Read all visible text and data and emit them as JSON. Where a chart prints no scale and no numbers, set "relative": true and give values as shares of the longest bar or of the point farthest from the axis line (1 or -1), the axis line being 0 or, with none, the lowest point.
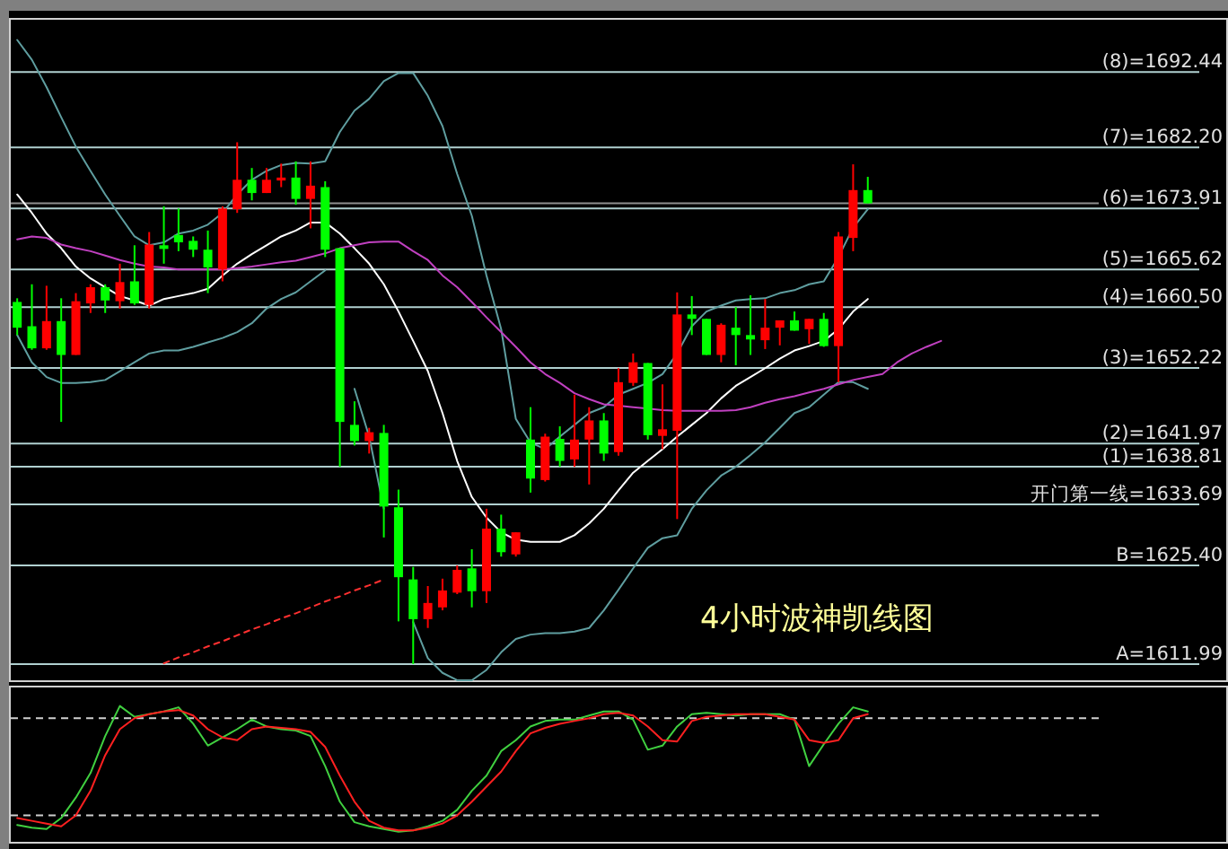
{
  "chart_data": [
    {
      "type": "candlestick",
      "title": "4小时波神凯线图",
      "categories": [
        null,
        null,
        null,
        null,
        null,
        null,
        null,
        null,
        null,
        null,
        null,
        null,
        null,
        null,
        null,
        null,
        null,
        null,
        null,
        null,
        null,
        null,
        null,
        null,
        null,
        null,
        null,
        null,
        null,
        null,
        null,
        null,
        null,
        null,
        null,
        null,
        null,
        null,
        null,
        null,
        null,
        null,
        null,
        null,
        null,
        null,
        null,
        null,
        null,
        null,
        null,
        null,
        null,
        null,
        null,
        null,
        null,
        null,
        null,
        null,
        null,
        null,
        null,
        null,
        null,
        null,
        null,
        null,
        null,
        null,
        null,
        null,
        null,
        null,
        null,
        null,
        null,
        null,
        null,
        null,
        null,
        null,
        null
      ],
      "ohlc": [
        [
          1661.2,
          1661.7,
          1656.7,
          1657.7
        ],
        [
          1657.9,
          1663.6,
          1654.7,
          1654.9
        ],
        [
          1654.9,
          1663.4,
          1654.7,
          1658.6
        ],
        [
          1658.6,
          1661.7,
          1644.9,
          1654.0
        ],
        [
          1654.0,
          1662.4,
          1654.0,
          1661.3
        ],
        [
          1661.0,
          1663.6,
          1659.7,
          1663.2
        ],
        [
          1663.2,
          1663.6,
          1659.7,
          1661.4
        ],
        [
          1661.3,
          1666.4,
          1660.3,
          1663.9
        ],
        [
          1664.0,
          1668.9,
          1660.8,
          1661.0
        ],
        [
          1660.8,
          1670.7,
          1660.3,
          1669.0
        ],
        [
          1668.9,
          1674.2,
          1666.4,
          1668.4
        ],
        [
          1670.3,
          1673.9,
          1668.1,
          1669.3
        ],
        [
          1669.5,
          1670.1,
          1667.3,
          1668.3
        ],
        [
          1668.3,
          1670.9,
          1662.4,
          1665.9
        ],
        [
          1665.6,
          1674.2,
          1664.0,
          1673.9
        ],
        [
          1673.8,
          1682.9,
          1673.3,
          1677.8
        ],
        [
          1677.8,
          1679.4,
          1675.0,
          1676.0
        ],
        [
          1676.0,
          1679.4,
          1676.0,
          1677.8
        ],
        [
          1677.7,
          1680.0,
          1676.8,
          1678.1
        ],
        [
          1678.1,
          1680.3,
          1674.4,
          1675.2
        ],
        [
          1675.2,
          1680.3,
          1671.2,
          1677.0
        ],
        [
          1676.8,
          1677.6,
          1667.3,
          1668.3
        ],
        [
          1668.5,
          1668.5,
          1638.8,
          1644.9
        ],
        [
          1644.5,
          1647.7,
          1641.7,
          1642.3
        ],
        [
          1642.3,
          1644.1,
          1640.6,
          1643.5
        ],
        [
          1643.4,
          1644.5,
          1629.2,
          1633.4
        ],
        [
          1633.3,
          1635.7,
          1617.8,
          1623.8
        ],
        [
          1623.5,
          1625.2,
          1612.0,
          1618.1
        ],
        [
          1618.1,
          1622.6,
          1616.9,
          1620.3
        ],
        [
          1619.7,
          1623.6,
          1619.3,
          1622.0
        ],
        [
          1621.7,
          1625.4,
          1621.5,
          1624.8
        ],
        [
          1625.0,
          1627.6,
          1619.7,
          1621.9
        ],
        [
          1621.9,
          1633.1,
          1620.3,
          1630.4
        ],
        [
          1630.4,
          1632.3,
          1626.6,
          1627.2
        ],
        [
          1626.9,
          1629.9,
          1626.6,
          1629.9
        ],
        [
          1642.5,
          1646.9,
          1635.3,
          1637.2
        ],
        [
          1637.0,
          1643.3,
          1636.8,
          1642.9
        ],
        [
          1642.6,
          1644.3,
          1638.8,
          1639.6
        ],
        [
          1639.8,
          1648.6,
          1638.8,
          1642.5
        ],
        [
          1642.5,
          1646.9,
          1636.4,
          1645.1
        ],
        [
          1645.1,
          1646.1,
          1639.6,
          1640.6
        ],
        [
          1640.8,
          1652.2,
          1640.3,
          1650.3
        ],
        [
          1650.2,
          1654.2,
          1649.8,
          1653.0
        ],
        [
          1652.9,
          1652.9,
          1642.5,
          1643.1
        ],
        [
          1643.0,
          1650.0,
          1641.2,
          1643.9
        ],
        [
          1643.7,
          1662.5,
          1631.7,
          1659.5
        ],
        [
          1659.5,
          1662.0,
          1656.7,
          1658.9
        ],
        [
          1658.9,
          1658.9,
          1654.0,
          1654.0
        ],
        [
          1654.0,
          1658.3,
          1653.0,
          1658.1
        ],
        [
          1657.7,
          1660.5,
          1652.6,
          1656.7
        ],
        [
          1656.7,
          1662.1,
          1654.0,
          1656.1
        ],
        [
          1656.0,
          1661.6,
          1654.8,
          1657.7
        ],
        [
          1657.7,
          1658.7,
          1655.3,
          1658.7
        ],
        [
          1658.7,
          1659.9,
          1657.3,
          1657.3
        ],
        [
          1657.5,
          1658.9,
          1655.5,
          1658.9
        ],
        [
          1658.9,
          1659.7,
          1655.1,
          1655.2
        ],
        [
          1655.2,
          1670.7,
          1650.3,
          1670.1
        ],
        [
          1669.9,
          1679.9,
          1668.1,
          1676.4
        ],
        [
          1676.4,
          1678.2,
          1674.6,
          1674.6
        ],
        null,
        null,
        null,
        null,
        null,
        null,
        null,
        null,
        null,
        null,
        null,
        null,
        null,
        null,
        null,
        null,
        null,
        null,
        null,
        null,
        null,
        null,
        null,
        null
      ],
      "colors": [
        "#00ff00",
        "#00ff00",
        "#ff0000",
        "#00ff00",
        "#ff0000",
        "#ff0000",
        "#00ff00",
        "#ff0000",
        "#00ff00",
        "#ff0000",
        "#00ff00",
        "#00ff00",
        "#00ff00",
        "#00ff00",
        "#ff0000",
        "#ff0000",
        "#00ff00",
        "#ff0000",
        "#ff0000",
        "#00ff00",
        "#ff0000",
        "#00ff00",
        "#00ff00",
        "#00ff00",
        "#ff0000",
        "#00ff00",
        "#00ff00",
        "#00ff00",
        "#ff0000",
        "#ff0000",
        "#ff0000",
        "#00ff00",
        "#ff0000",
        "#00ff00",
        "#ff0000",
        "#00ff00",
        "#ff0000",
        "#00ff00",
        "#ff0000",
        "#ff0000",
        "#00ff00",
        "#ff0000",
        "#ff0000",
        "#00ff00",
        "#ff0000",
        "#ff0000",
        "#00ff00",
        "#00ff00",
        "#ff0000",
        "#00ff00",
        "#00ff00",
        "#ff0000",
        "#ff0000",
        "#00ff00",
        "#ff0000",
        "#00ff00",
        "#ff0000",
        "#ff0000",
        "#00ff00",
        null,
        null,
        null,
        null,
        null,
        null,
        null,
        null,
        null,
        null,
        null,
        null,
        null,
        null,
        null,
        null,
        null,
        null,
        null,
        null,
        null,
        null,
        null,
        null
      ],
      "series": [
        {
          "type": "line",
          "color": "#5f9ea0",
          "values": [
            1696.8,
            1694.1,
            1690.4,
            1686.3,
            1682.3,
            1679.0,
            1675.8,
            1672.9,
            1670.1,
            1668.9,
            1669.3,
            1670.5,
            1670.9,
            1671.7,
            1673.3,
            1675.8,
            1677.8,
            1679.0,
            1679.8,
            1680.1,
            1680.0,
            1680.3,
            1684.3,
            1687.2,
            1688.8,
            1691.2,
            1692.3,
            1692.3,
            1689.2,
            1685.1,
            1678.6,
            1672.9,
            1664.8,
            1657.5,
            1645.3,
            1642.1,
            1641.2,
            1642.9,
            1644.5,
            1646.1,
            1646.9,
            1648.6,
            1649.4,
            1650.2,
            1651.4,
            1654.2,
            1657.9,
            1659.9,
            1660.7,
            1661.4,
            1661.6,
            1661.7,
            1662.4,
            1662.8,
            1663.6,
            1664.0,
            1667.3,
            1671.3,
            1673.8,
            null,
            null,
            null,
            null,
            null,
            null,
            null,
            null,
            null,
            null,
            null,
            null,
            null,
            null,
            null,
            null,
            null,
            null,
            null,
            null,
            null,
            null,
            null,
            null
          ]
        },
        {
          "type": "line",
          "color": "#5f9ea0",
          "values": [
            1656.7,
            1653.0,
            1651.0,
            1650.2,
            1650.2,
            1650.3,
            1650.6,
            1651.8,
            1653.0,
            1654.2,
            1654.6,
            1654.6,
            1655.1,
            1655.7,
            1656.3,
            1657.1,
            1658.3,
            1660.3,
            1661.6,
            1662.5,
            1664.0,
            1665.5,
            null,
            1649.4,
            1642.9,
            1633.1,
            null,
            1617.7,
            1612.8,
            1610.8,
            1609.8,
            1609.8,
            1611.2,
            1613.6,
            1615.4,
            1616.0,
            1616.2,
            1616.2,
            1616.4,
            1616.9,
            1619.3,
            1622.1,
            1625.0,
            1627.8,
            1629.1,
            1629.5,
            1633.1,
            1635.6,
            1637.6,
            1638.8,
            1640.4,
            1642.1,
            1644.1,
            1646.1,
            1646.9,
            1648.6,
            1650.3,
            1650.3,
            1649.4,
            null,
            null,
            null,
            null,
            null,
            null,
            null,
            null,
            null,
            null,
            null,
            null,
            null,
            null,
            null,
            null,
            null,
            null,
            null,
            null,
            null,
            null,
            null,
            null
          ]
        },
        {
          "type": "line",
          "color": "#ffffff",
          "values": [
            1675.8,
            1673.3,
            1670.5,
            1668.5,
            1666.0,
            1664.4,
            1663.2,
            1662.0,
            1661.4,
            1660.7,
            1661.6,
            1662.0,
            1662.4,
            1663.0,
            1664.8,
            1666.4,
            1667.7,
            1668.9,
            1670.1,
            1670.9,
            1672.0,
            1672.0,
            1670.5,
            1668.5,
            1666.4,
            1663.6,
            1659.9,
            1655.9,
            1651.8,
            1646.1,
            1639.6,
            1634.7,
            1631.9,
            1629.9,
            1628.9,
            1628.6,
            1628.6,
            1628.6,
            1629.5,
            1631.1,
            1633.1,
            1635.6,
            1638.0,
            1639.6,
            1641.2,
            1642.9,
            1644.5,
            1646.1,
            1648.1,
            1649.8,
            1651.0,
            1652.2,
            1653.5,
            1654.6,
            1655.2,
            1655.9,
            1657.5,
            1659.9,
            1661.6,
            null,
            null,
            null,
            null,
            null,
            null,
            null,
            null,
            null,
            null,
            null,
            null,
            null,
            null,
            null,
            null,
            null,
            null,
            null,
            null,
            null,
            null,
            null,
            null
          ]
        },
        {
          "type": "line",
          "color": "#c040c0",
          "values": [
            1669.7,
            1670.1,
            1669.9,
            1669.0,
            1668.5,
            1668.1,
            1667.5,
            1666.9,
            1666.4,
            1666.0,
            1665.9,
            1665.6,
            1665.6,
            1665.6,
            1665.6,
            1665.8,
            1666.0,
            1666.3,
            1666.6,
            1666.8,
            1667.3,
            1667.8,
            1668.5,
            1668.9,
            1669.3,
            1669.4,
            1669.4,
            1668.1,
            1666.9,
            1664.8,
            1663.2,
            1661.2,
            1659.1,
            1657.1,
            1655.1,
            1653.0,
            1651.4,
            1650.2,
            1648.8,
            1648.0,
            1647.3,
            1647.1,
            1646.9,
            1646.7,
            1646.5,
            1646.4,
            1646.4,
            1646.4,
            1646.4,
            1646.5,
            1646.9,
            1647.5,
            1648.0,
            1648.4,
            1648.9,
            1649.4,
            1650.0,
            1650.6,
            1651.0,
            1651.4,
            1653.0,
            1654.2,
            1655.1,
            1655.9,
            null,
            null,
            null,
            null,
            null,
            null,
            null,
            null,
            null,
            null,
            null,
            null,
            null,
            null,
            null,
            null,
            null,
            null,
            null
          ]
        },
        {
          "type": "line",
          "color": "#ff3030",
          "line_style": "dashed",
          "values": [
            null,
            null,
            null,
            null,
            null,
            null,
            null,
            null,
            null,
            null,
            1612.1,
            1612.9,
            1613.6,
            1614.4,
            1615.1,
            1615.9,
            1616.7,
            1617.4,
            1618.2,
            1618.9,
            1619.7,
            1620.5,
            1621.2,
            1622.0,
            1622.7,
            1623.5,
            null,
            null,
            null,
            null,
            null,
            null,
            null,
            null,
            null,
            null,
            null,
            null,
            null,
            null,
            null,
            null,
            null,
            null,
            null,
            null,
            null,
            null,
            null,
            null,
            null,
            null,
            null,
            null,
            null,
            null,
            null,
            null,
            null,
            null,
            null,
            null,
            null,
            null,
            null,
            null,
            null,
            null,
            null,
            null,
            null,
            null,
            null,
            null,
            null,
            null,
            null,
            null,
            null,
            null,
            null,
            null,
            null
          ]
        }
      ],
      "ylim": [
        1609.6,
        1699.3
      ],
      "tick_labels": "y",
      "grid": "y",
      "yticks": [
        {
          "value": 1692.44,
          "label": "(8)=1692.44"
        },
        {
          "value": 1682.2,
          "label": "(7)=1682.20"
        },
        {
          "value": 1673.91,
          "label": "(6)=1673.91"
        },
        {
          "value": 1665.62,
          "label": "(5)=1665.62"
        },
        {
          "value": 1660.5,
          "label": "(4)=1660.50"
        },
        {
          "value": 1652.22,
          "label": "(3)=1652.22"
        },
        {
          "value": 1641.97,
          "label": "(2)=1641.97"
        },
        {
          "value": 1638.81,
          "label": "(1)=1638.81"
        },
        {
          "value": 1633.69,
          "label": "开门第一线=1633.69"
        },
        {
          "value": 1625.4,
          "label": "B=1625.40"
        },
        {
          "value": 1611.99,
          "label": "A=1611.99"
        }
      ],
      "ref_lines": [
        {
          "axis": "y",
          "value": 1674.6,
          "label": null,
          "color": "#909090"
        }
      ]
    },
    {
      "type": "line",
      "relative": true,
      "categories": [
        null,
        null,
        null,
        null,
        null,
        null,
        null,
        null,
        null,
        null,
        null,
        null,
        null,
        null,
        null,
        null,
        null,
        null,
        null,
        null,
        null,
        null,
        null,
        null,
        null,
        null,
        null,
        null,
        null,
        null,
        null,
        null,
        null,
        null,
        null,
        null,
        null,
        null,
        null,
        null,
        null,
        null,
        null,
        null,
        null,
        null,
        null,
        null,
        null,
        null,
        null,
        null,
        null,
        null,
        null,
        null,
        null,
        null,
        null,
        null,
        null,
        null,
        null,
        null,
        null,
        null,
        null,
        null,
        null,
        null,
        null,
        null,
        null,
        null,
        null,
        null,
        null,
        null,
        null,
        null,
        null,
        null,
        null
      ],
      "series": [
        {
          "color": "#40d040",
          "values": [
            0.13,
            0.11,
            0.1,
            0.18,
            0.33,
            0.51,
            0.78,
            1.0,
            0.92,
            0.94,
            0.96,
            0.99,
            0.87,
            0.71,
            0.77,
            0.83,
            0.9,
            0.85,
            0.83,
            0.82,
            0.78,
            0.56,
            0.3,
            0.15,
            0.12,
            0.1,
            0.08,
            0.09,
            0.12,
            0.16,
            0.24,
            0.38,
            0.49,
            0.67,
            0.75,
            0.85,
            0.89,
            0.9,
            0.9,
            0.93,
            0.96,
            0.96,
            0.9,
            0.68,
            0.71,
            0.85,
            0.94,
            0.95,
            0.94,
            0.93,
            0.94,
            0.94,
            0.94,
            0.9,
            0.56,
            0.72,
            0.87,
            0.99,
            0.96,
            null,
            null,
            null,
            null,
            null,
            null,
            null,
            null,
            null,
            null,
            null,
            null,
            null,
            null,
            null,
            null,
            null,
            null,
            null,
            null,
            null,
            null,
            null,
            null
          ]
        },
        {
          "color": "#ff2020",
          "values": [
            0.18,
            0.16,
            0.14,
            0.12,
            0.2,
            0.38,
            0.64,
            0.83,
            0.91,
            0.94,
            0.96,
            0.97,
            0.93,
            0.83,
            0.77,
            0.75,
            0.83,
            0.85,
            0.84,
            0.83,
            0.81,
            0.7,
            0.49,
            0.3,
            0.16,
            0.11,
            0.09,
            0.09,
            0.11,
            0.14,
            0.2,
            0.3,
            0.41,
            0.52,
            0.67,
            0.8,
            0.84,
            0.87,
            0.89,
            0.91,
            0.94,
            0.95,
            0.93,
            0.85,
            0.75,
            0.74,
            0.89,
            0.92,
            0.93,
            0.94,
            0.94,
            0.94,
            0.92,
            0.9,
            0.75,
            0.73,
            0.75,
            0.91,
            0.94,
            null,
            null,
            null,
            null,
            null,
            null,
            null,
            null,
            null,
            null,
            null,
            null,
            null,
            null,
            null,
            null,
            null,
            null,
            null,
            null,
            null,
            null,
            null,
            null
          ]
        }
      ],
      "ref_lines": [
        {
          "axis": "y",
          "value": 0.91,
          "label": null,
          "color": "#d0d0d0",
          "line_style": "dashed"
        },
        {
          "axis": "y",
          "value": 0.2,
          "label": null,
          "color": "#d0d0d0",
          "line_style": "dashed"
        }
      ]
    }
  ]
}
